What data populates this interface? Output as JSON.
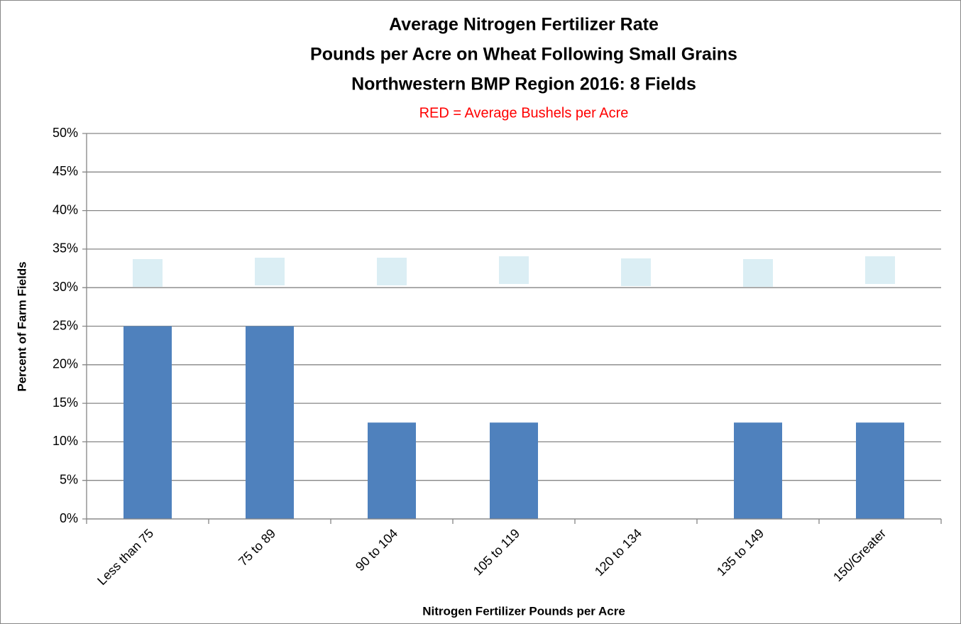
{
  "chart_data": {
    "type": "bar",
    "title": [
      "Average Nitrogen Fertilizer Rate",
      "Pounds per Acre on Wheat Following Small Grains",
      "Northwestern BMP Region 2016:  8 Fields"
    ],
    "subtitle": "RED = Average Bushels per Acre",
    "x_label": "Nitrogen Fertilizer Pounds per Acre",
    "y_label": "Percent of Farm Fields",
    "categories": [
      "Less than 75",
      "75 to 89",
      "90 to 104",
      "105 to 119",
      "120 to 134",
      "135 to 149",
      "150/Greater"
    ],
    "values": [
      25,
      25,
      12.5,
      12.5,
      0,
      12.5,
      12.5
    ],
    "color": "#4f81bd",
    "ylim": [
      0,
      50
    ],
    "yticks": [
      {
        "value": 0,
        "label": "0%"
      },
      {
        "value": 5,
        "label": "5%"
      },
      {
        "value": 10,
        "label": "10%"
      },
      {
        "value": 15,
        "label": "15%"
      },
      {
        "value": 20,
        "label": "20%"
      },
      {
        "value": 25,
        "label": "25%"
      },
      {
        "value": 30,
        "label": "30%"
      },
      {
        "value": 35,
        "label": "35%"
      },
      {
        "value": 40,
        "label": "40%"
      },
      {
        "value": 45,
        "label": "45%"
      },
      {
        "value": 50,
        "label": "50%"
      }
    ],
    "grid": true
  }
}
